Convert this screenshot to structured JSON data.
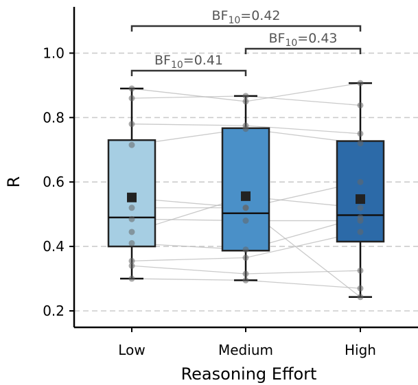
{
  "chart_data": {
    "type": "box",
    "xlabel": "Reasoning Effort",
    "ylabel": "R",
    "ylim": [
      0.15,
      1.15
    ],
    "yticks": [
      0.2,
      0.4,
      0.6,
      0.8,
      1.0
    ],
    "ytick_labels": [
      "0.2",
      "0.4",
      "0.6",
      "0.8",
      "1.0"
    ],
    "grid": "horizontal dashed",
    "categories": [
      "Low",
      "Medium",
      "High"
    ],
    "colors": [
      "#a6cee3",
      "#4a90c8",
      "#2c6aa8"
    ],
    "boxes": [
      {
        "category": "Low",
        "whisker_low": 0.3,
        "q1": 0.4,
        "median": 0.49,
        "q3": 0.73,
        "whisker_high": 0.89,
        "mean": 0.552
      },
      {
        "category": "Medium",
        "whisker_low": 0.295,
        "q1": 0.387,
        "median": 0.503,
        "q3": 0.767,
        "whisker_high": 0.867,
        "mean": 0.556
      },
      {
        "category": "High",
        "whisker_low": 0.243,
        "q1": 0.415,
        "median": 0.497,
        "q3": 0.727,
        "whisker_high": 0.907,
        "mean": 0.547
      }
    ],
    "paired_lines": [
      [
        0.89,
        0.85,
        0.907
      ],
      [
        0.86,
        0.867,
        0.838
      ],
      [
        0.78,
        0.775,
        0.75
      ],
      [
        0.715,
        0.765,
        0.72
      ],
      [
        0.55,
        0.52,
        0.6
      ],
      [
        0.485,
        0.48,
        0.48
      ],
      [
        0.445,
        0.555,
        0.52
      ],
      [
        0.41,
        0.39,
        0.49
      ],
      [
        0.355,
        0.365,
        0.445
      ],
      [
        0.34,
        0.315,
        0.325
      ],
      [
        0.3,
        0.295,
        0.27
      ],
      [
        0.52,
        0.52,
        0.243
      ]
    ],
    "bayes_factors": [
      {
        "from": "Low",
        "to": "Medium",
        "label": "BF",
        "sub": "10",
        "value_text": "=0.41"
      },
      {
        "from": "Medium",
        "to": "High",
        "label": "BF",
        "sub": "10",
        "value_text": "=0.43"
      },
      {
        "from": "Low",
        "to": "High",
        "label": "BF",
        "sub": "10",
        "value_text": "=0.42"
      }
    ]
  }
}
